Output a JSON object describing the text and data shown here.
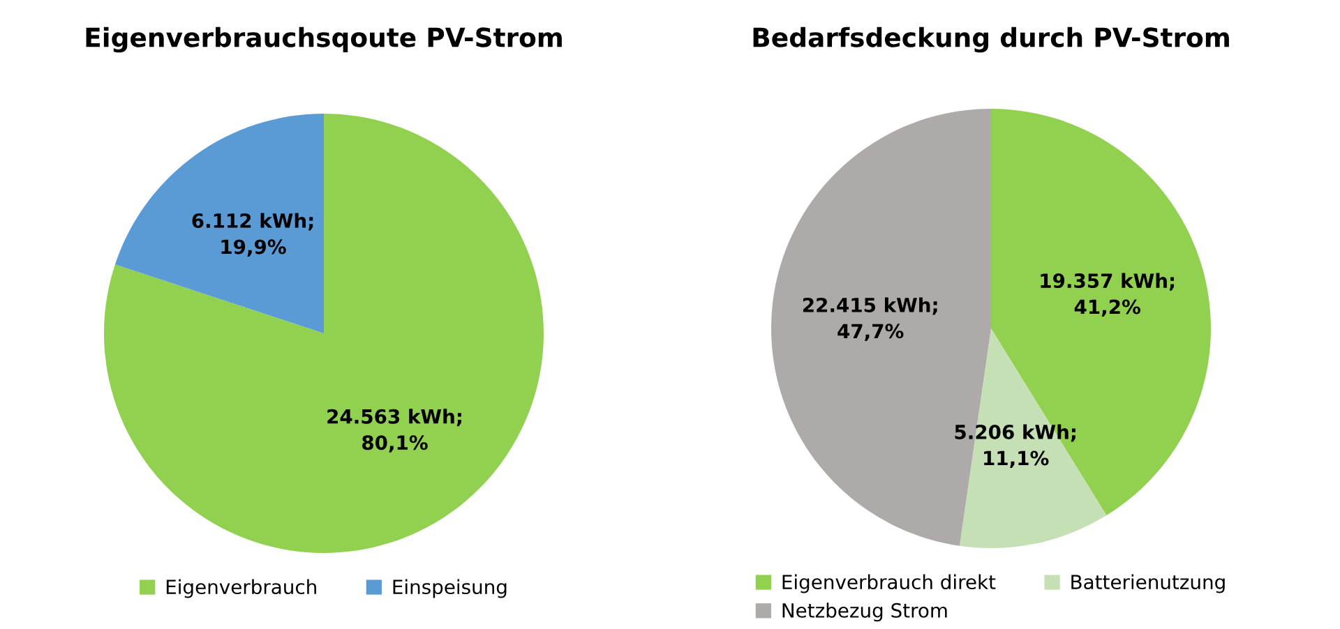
{
  "chart_data": [
    {
      "type": "pie",
      "title": "Eigenverbrauchsqoute PV-Strom",
      "categories": [
        "Eigenverbrauch",
        "Einspeisung"
      ],
      "values": [
        24563,
        6112
      ],
      "colors": [
        "#92d050",
        "#5b9bd5"
      ],
      "value_labels": [
        "24.563 kWh;\n80,1%",
        "6.112 kWh;\n19,9%"
      ],
      "legend": "bottom"
    },
    {
      "type": "pie",
      "title": "Bedarfsdeckung durch PV-Strom",
      "categories": [
        "Eigenverbrauch direkt",
        "Batterienutzung",
        "Netzbezug Strom"
      ],
      "values": [
        19357,
        5206,
        22415
      ],
      "colors": [
        "#92d050",
        "#c5e0b4",
        "#aeaaaa"
      ],
      "value_labels": [
        "19.357 kWh;\n41,2%",
        "5.206 kWh;\n11,1%",
        "22.415 kWh;\n47,7%"
      ],
      "legend": "bottom"
    }
  ]
}
